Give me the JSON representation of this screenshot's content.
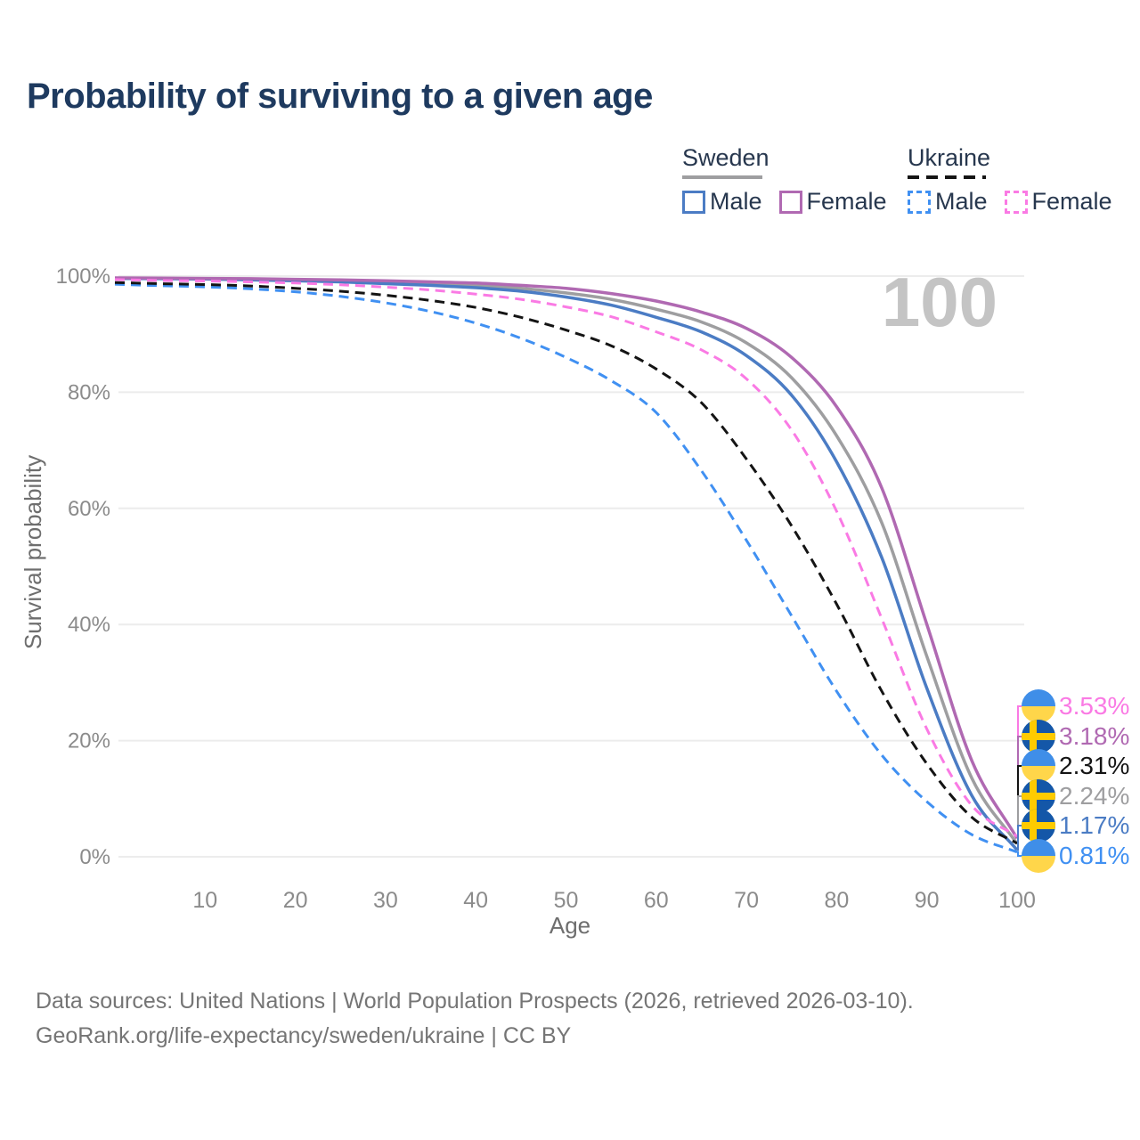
{
  "title": "Probability of surviving to a given age",
  "legend": {
    "groups": [
      {
        "label": "Sweden",
        "line_style": "solid",
        "underline_color": "#9e9ea0",
        "items": [
          {
            "label": "Male",
            "color": "#4b7cc4"
          },
          {
            "label": "Female",
            "color": "#b069b2"
          }
        ]
      },
      {
        "label": "Ukraine",
        "line_style": "dashed",
        "underline_color": "#141414",
        "items": [
          {
            "label": "Male",
            "color": "#4090f2"
          },
          {
            "label": "Female",
            "color": "#fa7ae4"
          }
        ]
      }
    ]
  },
  "hover_age_label": "100",
  "chart_data": {
    "type": "line",
    "title": "Probability of surviving to a given age",
    "xlabel": "Age",
    "ylabel": "Survival probability",
    "xlim": [
      0,
      100
    ],
    "ylim": [
      0,
      100
    ],
    "grid": true,
    "legend_position": "top-right",
    "x_ticks": [
      10,
      20,
      30,
      40,
      50,
      60,
      70,
      80,
      90,
      100
    ],
    "y_ticks": [
      "0%",
      "20%",
      "40%",
      "60%",
      "80%",
      "100%"
    ],
    "y_ticks_pct": [
      0,
      20,
      40,
      60,
      80,
      100
    ],
    "ages": [
      0,
      5,
      10,
      15,
      20,
      25,
      30,
      35,
      40,
      45,
      50,
      55,
      60,
      65,
      70,
      75,
      80,
      85,
      90,
      95,
      100
    ],
    "series": [
      {
        "name": "Sweden Total",
        "country": "sweden",
        "sex": "total",
        "color": "#9e9ea0",
        "dash": false,
        "values": [
          99.65,
          99.6,
          99.55,
          99.45,
          99.3,
          99.15,
          99.0,
          98.7,
          98.4,
          97.9,
          97.1,
          96.0,
          94.3,
          92.1,
          88.5,
          82.5,
          72.5,
          57.5,
          34.5,
          13.5,
          2.24
        ],
        "value_at_100": "2.24%"
      },
      {
        "name": "Sweden Male",
        "country": "sweden",
        "sex": "male",
        "color": "#4b7cc4",
        "dash": false,
        "values": [
          99.6,
          99.55,
          99.5,
          99.35,
          99.2,
          99.0,
          98.7,
          98.4,
          98.0,
          97.4,
          96.4,
          95.0,
          92.9,
          90.4,
          86.3,
          79.5,
          68.0,
          51.5,
          29.0,
          10.5,
          1.17
        ],
        "value_at_100": "1.17%"
      },
      {
        "name": "Sweden Female",
        "country": "sweden",
        "sex": "female",
        "color": "#b069b2",
        "dash": false,
        "values": [
          99.7,
          99.65,
          99.6,
          99.55,
          99.45,
          99.35,
          99.2,
          99.0,
          98.8,
          98.4,
          97.9,
          97.0,
          95.7,
          93.8,
          91.0,
          86.0,
          77.5,
          63.5,
          40.0,
          16.5,
          3.18
        ],
        "value_at_100": "3.18%"
      },
      {
        "name": "Ukraine Male",
        "country": "ukraine",
        "sex": "male",
        "color": "#4090f2",
        "dash": true,
        "values": [
          98.6,
          98.35,
          98.15,
          97.8,
          97.3,
          96.5,
          95.4,
          93.9,
          91.9,
          89.3,
          86.0,
          82.0,
          76.5,
          66.5,
          54.5,
          41.5,
          28.5,
          17.5,
          9.5,
          3.8,
          0.81
        ],
        "value_at_100": "0.81%"
      },
      {
        "name": "Ukraine Total",
        "country": "ukraine",
        "sex": "total",
        "color": "#141414",
        "dash": true,
        "values": [
          98.9,
          98.7,
          98.55,
          98.3,
          97.9,
          97.4,
          96.7,
          95.8,
          94.6,
          92.9,
          90.7,
          88.0,
          84.0,
          78.2,
          68.5,
          57.0,
          43.5,
          28.5,
          16.0,
          6.8,
          2.31
        ],
        "value_at_100": "2.31%"
      },
      {
        "name": "Ukraine Female",
        "country": "ukraine",
        "sex": "female",
        "color": "#fa7ae4",
        "dash": true,
        "values": [
          99.4,
          99.25,
          99.15,
          99.0,
          98.8,
          98.5,
          98.1,
          97.6,
          96.9,
          96.0,
          94.7,
          93.0,
          90.4,
          87.3,
          82.3,
          73.5,
          59.5,
          41.0,
          22.0,
          8.8,
          3.53
        ],
        "value_at_100": "3.53%"
      }
    ],
    "end_labels": [
      {
        "flag": "ukraine",
        "value": "3.53%",
        "color": "#fa7ae4",
        "series": "Ukraine Female"
      },
      {
        "flag": "sweden",
        "value": "3.18%",
        "color": "#b069b2",
        "series": "Sweden Female"
      },
      {
        "flag": "ukraine",
        "value": "2.31%",
        "color": "#141414",
        "series": "Ukraine Total"
      },
      {
        "flag": "sweden",
        "value": "2.24%",
        "color": "#9e9ea0",
        "series": "Sweden Total"
      },
      {
        "flag": "sweden",
        "value": "1.17%",
        "color": "#4b7cc4",
        "series": "Sweden Male"
      },
      {
        "flag": "ukraine",
        "value": "0.81%",
        "color": "#4090f2",
        "series": "Ukraine Male"
      }
    ],
    "flag_colors": {
      "ukraine_blue": "#3f8ee8",
      "ukraine_yellow": "#ffd64a",
      "sweden_blue": "#1457a8",
      "sweden_yellow": "#fecb00"
    }
  },
  "footer": {
    "line1": "Data sources: United Nations | World Population Prospects (2026, retrieved 2026-03-10).",
    "line2": "GeoRank.org/life-expectancy/sweden/ukraine | CC BY"
  }
}
